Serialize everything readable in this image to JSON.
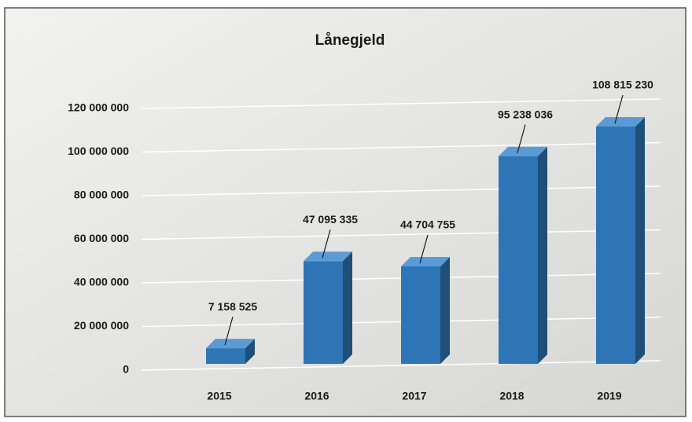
{
  "chart_data": {
    "type": "bar",
    "title": "Lånegjeld",
    "categories": [
      "2015",
      "2016",
      "2017",
      "2018",
      "2019"
    ],
    "values": [
      7158525,
      47095335,
      44704755,
      95238036,
      108815230
    ],
    "value_labels": [
      "7 158 525",
      "47 095 335",
      "44 704 755",
      "95 238 036",
      "108 815 230"
    ],
    "color": "#2e75b6",
    "ylim": [
      0,
      120000000
    ],
    "yticks": [
      0,
      {
        "value": 20000000,
        "label": "20 000 000"
      },
      {
        "value": 40000000,
        "label": "40 000 000"
      },
      {
        "value": 60000000,
        "label": "60 000 000"
      },
      {
        "value": 80000000,
        "label": "80 000 000"
      },
      {
        "value": 100000000,
        "label": "100 000 000"
      },
      {
        "value": 120000000,
        "label": "120 000 000"
      }
    ],
    "grid": true
  }
}
